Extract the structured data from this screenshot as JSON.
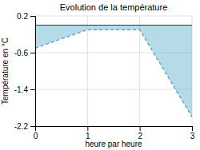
{
  "chart_data": {
    "type": "area",
    "title": "Evolution de la température",
    "xlabel": "heure par heure",
    "ylabel": "Température en °C",
    "x": [
      0,
      1,
      2,
      3
    ],
    "values": [
      -0.5,
      -0.1,
      -0.1,
      -2.0
    ],
    "baseline": 0.0,
    "color": "#5aaccc",
    "line_style": "dashed",
    "xlim": [
      0,
      3
    ],
    "ylim": [
      -2.2,
      0.2
    ],
    "xticks": [
      0,
      1,
      2,
      3
    ],
    "yticks": [
      0.2,
      -0.6,
      -1.4,
      -2.2
    ],
    "grid": true
  }
}
